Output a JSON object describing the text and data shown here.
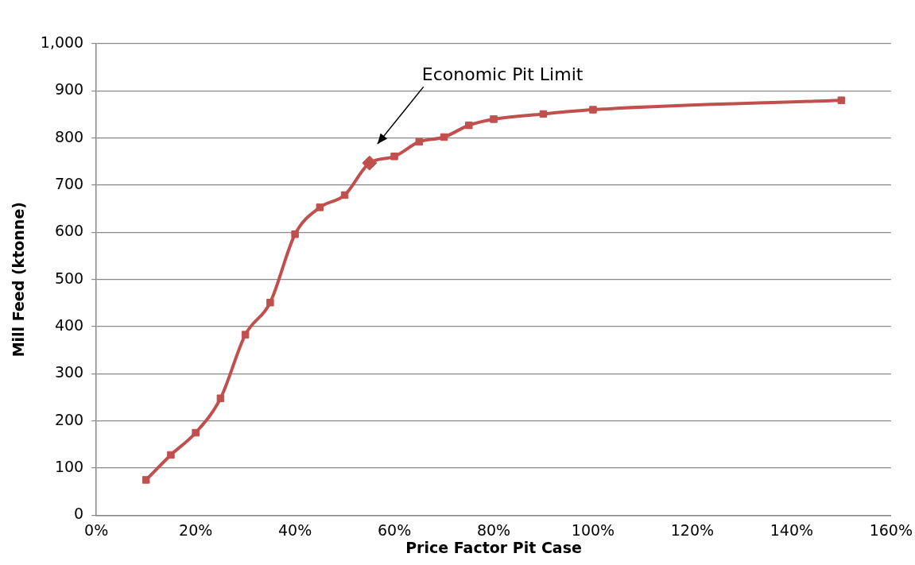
{
  "chart_data": {
    "type": "line",
    "xlabel": "Price Factor Pit Case",
    "ylabel": "Mill Feed (ktonne)",
    "x": [
      10,
      15,
      20,
      25,
      30,
      35,
      40,
      45,
      50,
      55,
      60,
      65,
      70,
      75,
      80,
      90,
      100,
      150
    ],
    "series": [
      {
        "color": "#c0504d",
        "marker": "square",
        "values": [
          75,
          128,
          175,
          248,
          383,
          451,
          596,
          653,
          679,
          747,
          761,
          792,
          802,
          827,
          840,
          851,
          860,
          880
        ]
      },
      {
        "type": "scatter",
        "color": "#c0504d",
        "marker": "diamond",
        "x": [
          55
        ],
        "values": [
          747
        ]
      }
    ],
    "xlim": [
      0,
      160
    ],
    "xticks": [
      {
        "value": 0,
        "label": "0%"
      },
      {
        "value": 20,
        "label": "20%"
      },
      {
        "value": 40,
        "label": "40%"
      },
      {
        "value": 60,
        "label": "60%"
      },
      {
        "value": 80,
        "label": "80%"
      },
      {
        "value": 100,
        "label": "100%"
      },
      {
        "value": 120,
        "label": "120%"
      },
      {
        "value": 140,
        "label": "140%"
      },
      {
        "value": 160,
        "label": "160%"
      }
    ],
    "ylim": [
      0,
      1000
    ],
    "yticks": [
      0,
      100,
      200,
      300,
      400,
      500,
      600,
      700,
      800,
      900,
      {
        "value": 1000,
        "label": "1,000"
      }
    ],
    "grid": "y",
    "legend": false,
    "annotations": [
      "Economic Pit Limit"
    ]
  }
}
